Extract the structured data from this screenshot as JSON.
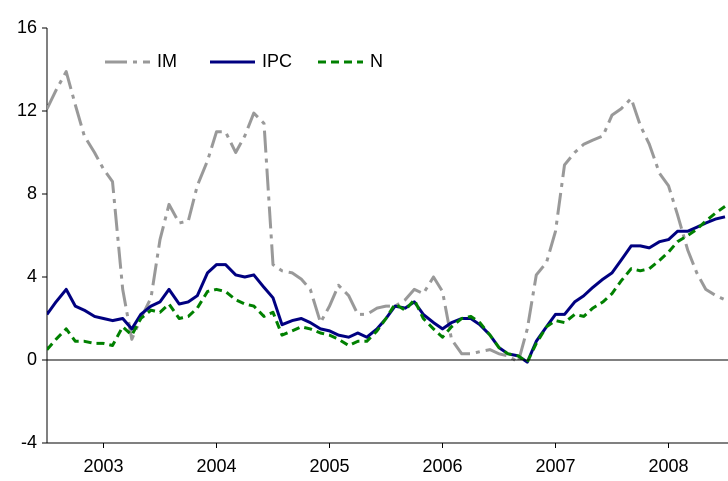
{
  "chart_data": {
    "type": "line",
    "x": [
      2003.0,
      2003.08,
      2003.17,
      2003.25,
      2003.33,
      2003.42,
      2003.5,
      2003.58,
      2003.67,
      2003.75,
      2003.83,
      2003.92,
      2004.0,
      2004.08,
      2004.17,
      2004.25,
      2004.33,
      2004.42,
      2004.5,
      2004.58,
      2004.67,
      2004.75,
      2004.83,
      2004.92,
      2005.0,
      2005.08,
      2005.17,
      2005.25,
      2005.33,
      2005.42,
      2005.5,
      2005.58,
      2005.67,
      2005.75,
      2005.83,
      2005.92,
      2006.0,
      2006.08,
      2006.17,
      2006.25,
      2006.33,
      2006.42,
      2006.5,
      2006.58,
      2006.67,
      2006.75,
      2006.83,
      2006.92,
      2007.0,
      2007.08,
      2007.17,
      2007.25,
      2007.33,
      2007.42,
      2007.5,
      2007.58,
      2007.67,
      2007.75,
      2007.83,
      2007.92,
      2008.0,
      2008.08,
      2008.17,
      2008.25,
      2008.33,
      2008.42,
      2008.5,
      2008.58,
      2008.67,
      2008.75,
      2008.83,
      2008.92,
      2009.0
    ],
    "series": [
      {
        "name": "IM",
        "color": "#999999",
        "dash": "22 6 4 6",
        "width": 3,
        "values": [
          12.1,
          13,
          13.9,
          12.3,
          10.8,
          10,
          9.2,
          8.6,
          3.4,
          1,
          2,
          3,
          5.8,
          7.5,
          6.6,
          6.7,
          8.4,
          9.6,
          11,
          11,
          10,
          10.8,
          11.9,
          11.4,
          4.6,
          4.3,
          4.2,
          3.9,
          3.4,
          1.8,
          2.6,
          3.6,
          3.1,
          2.2,
          2.2,
          2.5,
          2.6,
          2.6,
          2.9,
          3.4,
          3.2,
          4,
          3.3,
          1,
          0.3,
          0.3,
          0.4,
          0.5,
          0.3,
          0.2,
          -0.1,
          1.5,
          4.1,
          4.7,
          6.2,
          9.4,
          10,
          10.4,
          10.6,
          10.8,
          11.8,
          12.1,
          12.6,
          11.3,
          10.4,
          9,
          8.4,
          7,
          5.3,
          4.2,
          3.4,
          3.1,
          2.9
        ]
      },
      {
        "name": "IPC",
        "color": "#000080",
        "dash": "none",
        "width": 3,
        "values": [
          2.2,
          2.8,
          3.4,
          2.6,
          2.4,
          2.1,
          2.0,
          1.9,
          2.0,
          1.5,
          2.2,
          2.6,
          2.8,
          3.4,
          2.7,
          2.8,
          3.1,
          4.2,
          4.6,
          4.6,
          4.1,
          4.0,
          4.1,
          3.5,
          3.0,
          1.7,
          1.9,
          2.0,
          1.8,
          1.5,
          1.4,
          1.2,
          1.1,
          1.3,
          1.1,
          1.5,
          2.0,
          2.6,
          2.5,
          2.8,
          2.2,
          1.8,
          1.5,
          1.8,
          2.0,
          2.0,
          1.7,
          1.2,
          0.6,
          0.3,
          0.2,
          -0.1,
          0.9,
          1.6,
          2.2,
          2.2,
          2.8,
          3.1,
          3.5,
          3.9,
          4.2,
          4.8,
          5.5,
          5.5,
          5.4,
          5.7,
          5.8,
          6.2,
          6.2,
          6.4,
          6.6,
          6.8,
          6.9
        ]
      },
      {
        "name": "N",
        "color": "#008000",
        "dash": "8 5",
        "width": 3,
        "values": [
          0.5,
          1.0,
          1.5,
          0.9,
          0.9,
          0.8,
          0.8,
          0.7,
          1.6,
          1.2,
          2.0,
          2.4,
          2.3,
          2.7,
          2.0,
          2.1,
          2.5,
          3.3,
          3.4,
          3.3,
          2.9,
          2.7,
          2.6,
          2.1,
          2.3,
          1.2,
          1.4,
          1.6,
          1.5,
          1.3,
          1.2,
          1.0,
          0.7,
          0.9,
          0.9,
          1.4,
          2.0,
          2.7,
          2.4,
          2.9,
          2.0,
          1.5,
          1.1,
          1.6,
          2.0,
          2.1,
          1.8,
          1.2,
          0.6,
          0.3,
          0.2,
          -0.1,
          0.8,
          1.6,
          1.9,
          1.8,
          2.2,
          2.1,
          2.5,
          2.8,
          3.2,
          3.8,
          4.4,
          4.3,
          4.4,
          4.8,
          5.2,
          5.7,
          6.0,
          6.3,
          6.7,
          7.1,
          7.4
        ]
      }
    ],
    "xlim": [
      2003,
      2009
    ],
    "xticks": [
      {
        "value": 2003.5,
        "label": "2003"
      },
      {
        "value": 2004.5,
        "label": "2004"
      },
      {
        "value": 2005.5,
        "label": "2005"
      },
      {
        "value": 2006.5,
        "label": "2006"
      },
      {
        "value": 2007.5,
        "label": "2007"
      },
      {
        "value": 2008.5,
        "label": "2008"
      }
    ],
    "ylim": [
      -4,
      16
    ],
    "yticks": [
      -4,
      0,
      4,
      8,
      12,
      16
    ],
    "zero_line": true
  }
}
